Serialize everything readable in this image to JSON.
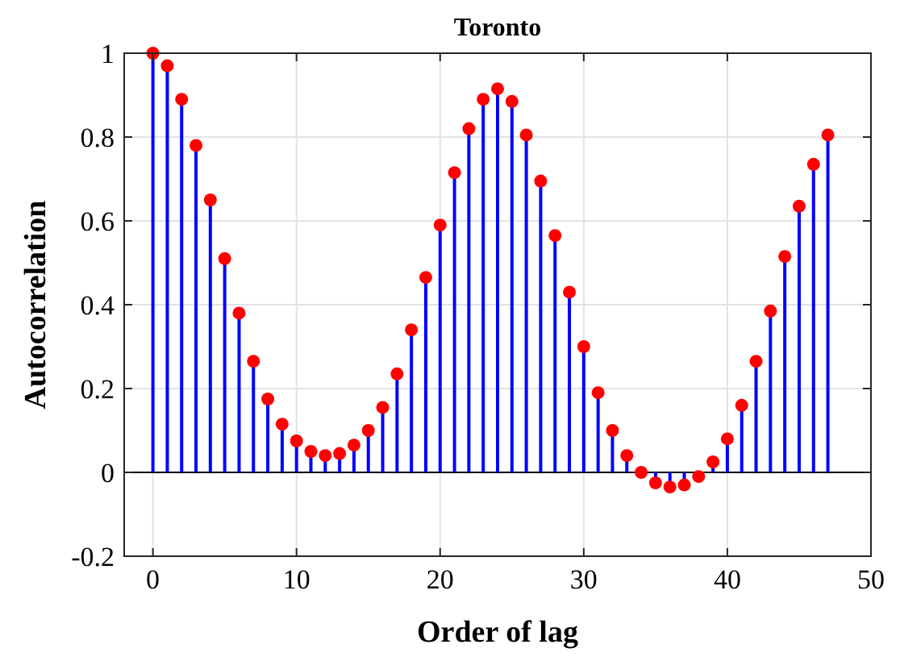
{
  "chart_data": {
    "type": "lollipop",
    "title": "Toronto",
    "xlabel": "Order of lag",
    "ylabel": "Autocorrelation",
    "x": [
      0,
      1,
      2,
      3,
      4,
      5,
      6,
      7,
      8,
      9,
      10,
      11,
      12,
      13,
      14,
      15,
      16,
      17,
      18,
      19,
      20,
      21,
      22,
      23,
      24,
      25,
      26,
      27,
      28,
      29,
      30,
      31,
      32,
      33,
      34,
      35,
      36,
      37,
      38,
      39,
      40,
      41,
      42,
      43,
      44,
      45,
      46,
      47
    ],
    "series": [
      {
        "color": "#ff0000",
        "values": [
          1,
          0.97,
          0.89,
          0.78,
          0.65,
          0.51,
          0.38,
          0.265,
          0.175,
          0.115,
          0.075,
          0.05,
          0.04,
          0.045,
          0.065,
          0.1,
          0.155,
          0.235,
          0.34,
          0.465,
          0.59,
          0.715,
          0.82,
          0.89,
          0.915,
          0.885,
          0.805,
          0.695,
          0.565,
          0.43,
          0.3,
          0.19,
          0.1,
          0.04,
          0,
          -0.025,
          -0.035,
          -0.03,
          -0.01,
          0.025,
          0.08,
          0.16,
          0.265,
          0.385,
          0.515,
          0.635,
          0.735,
          0.805
        ]
      }
    ],
    "xlim": [
      -2,
      50
    ],
    "xticks": [
      0,
      10,
      20,
      30,
      40,
      50
    ],
    "ylim": [
      -0.2,
      1
    ],
    "yticks": [
      -0.2,
      0,
      0.2,
      0.4,
      0.6,
      0.8,
      1
    ],
    "grid": true,
    "marker": "circle"
  }
}
